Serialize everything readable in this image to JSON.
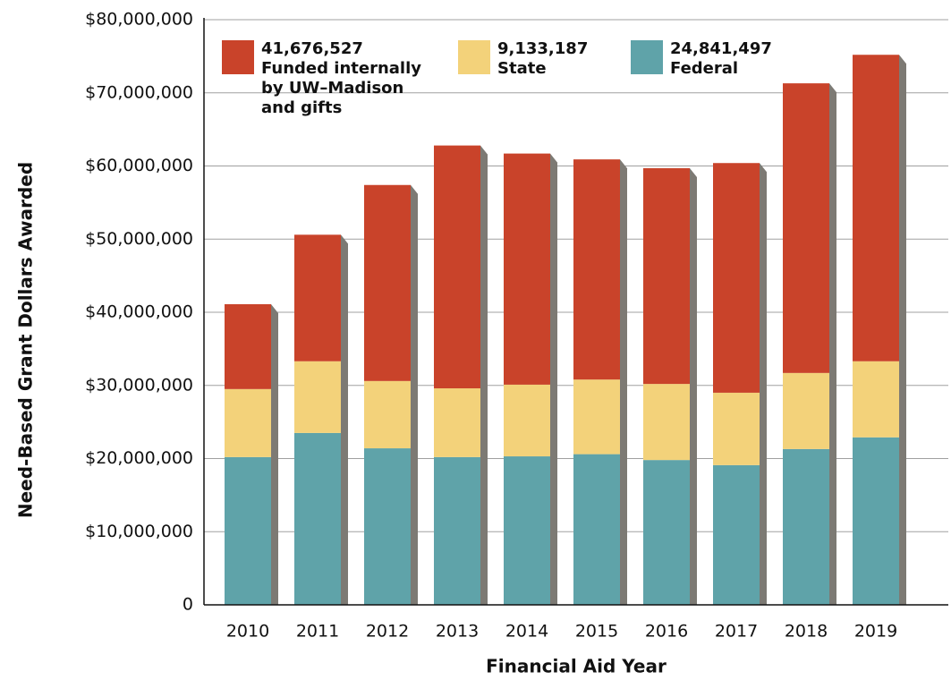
{
  "chart_data": {
    "type": "stacked_bar",
    "x_label": "Financial Aid Year",
    "y_label": "Need-Based Grant Dollars Awarded",
    "categories": [
      "2010",
      "2011",
      "2012",
      "2013",
      "2014",
      "2015",
      "2016",
      "2017",
      "2018",
      "2019"
    ],
    "series": [
      {
        "name": "Federal",
        "legend_value": "24,841,497",
        "color": "#5fa3a9",
        "values": [
          20200000,
          23500000,
          21400000,
          20200000,
          20300000,
          20600000,
          19800000,
          19100000,
          21300000,
          22900000
        ]
      },
      {
        "name": "State",
        "legend_value": "9,133,187",
        "color": "#f3d27a",
        "values": [
          9300000,
          9800000,
          9200000,
          9400000,
          9800000,
          10200000,
          10400000,
          9900000,
          10400000,
          10400000
        ]
      },
      {
        "name": "Funded internally by UW–Madison and gifts",
        "legend_value": "41,676,527",
        "color": "#c9432a",
        "values": [
          11600000,
          17300000,
          26800000,
          33200000,
          31600000,
          30100000,
          29500000,
          31400000,
          39600000,
          41900000
        ]
      }
    ],
    "legend_order": [
      2,
      1,
      0
    ],
    "ylim": [
      0,
      80000000
    ],
    "yticks": [
      0,
      {
        "value": 10000000,
        "label": "$10,000,000"
      },
      {
        "value": 20000000,
        "label": "$20,000,000"
      },
      {
        "value": 30000000,
        "label": "$30,000,000"
      },
      {
        "value": 40000000,
        "label": "$40,000,000"
      },
      {
        "value": 50000000,
        "label": "$50,000,000"
      },
      {
        "value": 60000000,
        "label": "$60,000,000"
      },
      {
        "value": 70000000,
        "label": "$70,000,000"
      },
      {
        "value": 80000000,
        "label": "$80,000,000"
      }
    ],
    "grid": true
  }
}
